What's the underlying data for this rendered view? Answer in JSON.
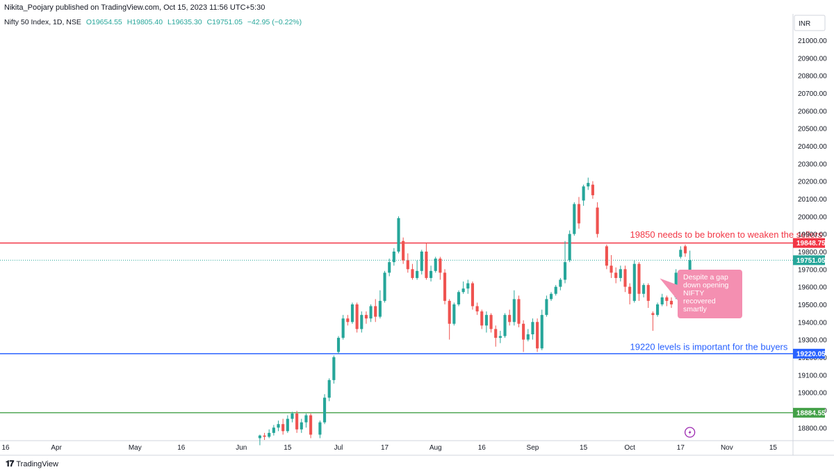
{
  "header": {
    "published": "Nikita_Poojary published on TradingView.com, Oct 15, 2023 11:56 UTC+5:30"
  },
  "legend": {
    "symbol": "Nifty 50 Index, 1D, NSE",
    "open": "O19654.55",
    "high": "H19805.40",
    "low": "L19635.30",
    "close": "C19751.05",
    "change": "−42.95 (−0.22%)"
  },
  "footer": {
    "brand": "TradingView",
    "logo": "tv-logo-icon"
  },
  "colors": {
    "up": "#26a69a",
    "down": "#ef5350",
    "resistance": "#f23645",
    "support_blue": "#2962ff",
    "support_green": "#43a047",
    "callout": "#f48fb1"
  },
  "chart_data": {
    "type": "candlestick",
    "currency": "INR",
    "ylim": [
      18730,
      21150
    ],
    "y_ticks": [
      18800,
      18900,
      19000,
      19100,
      19200,
      19300,
      19400,
      19500,
      19600,
      19700,
      19800,
      19900,
      20000,
      20100,
      20200,
      20300,
      20400,
      20500,
      20600,
      20700,
      20800,
      20900,
      21000
    ],
    "y_tick_labels": [
      "18800.00",
      "18900.00",
      "19000.00",
      "19100.00",
      "19200.00",
      "19300.00",
      "19400.00",
      "19500.00",
      "19600.00",
      "19700.00",
      "19800.00",
      "19900.00",
      "20000.00",
      "20100.00",
      "20200.00",
      "20300.00",
      "20400.00",
      "20500.00",
      "20600.00",
      "20700.00",
      "20800.00",
      "20900.00",
      "21000.00"
    ],
    "x_ticks": [
      "16",
      "Apr",
      "May",
      "16",
      "Jun",
      "15",
      "Jul",
      "17",
      "Aug",
      "16",
      "Sep",
      "15",
      "Oct",
      "17",
      "Nov",
      "15"
    ],
    "x_range": [
      0,
      170
    ],
    "x_tick_positions": [
      0,
      11,
      28,
      38,
      51,
      61,
      72,
      82,
      93,
      103,
      114,
      125,
      135,
      146,
      156,
      166
    ],
    "levels": [
      {
        "value": 19848.75,
        "label": "19848.75",
        "color": "#f23645",
        "style": "solid"
      },
      {
        "value": 19751.05,
        "label": "19751.05",
        "color": "#26a69a",
        "style": "dotted"
      },
      {
        "value": 19220.05,
        "label": "19220.05",
        "color": "#2962ff",
        "style": "solid"
      },
      {
        "value": 18884.55,
        "label": "18884.55",
        "color": "#43a047",
        "style": "solid"
      }
    ],
    "annotations": [
      {
        "text": "19850 needs to be broken to weaken the sellers",
        "color": "#f23645",
        "x": 134,
        "y": 19878
      },
      {
        "text": "19220 levels is important for the buyers",
        "color": "#2962ff",
        "x": 134,
        "y": 19242
      }
    ],
    "callout": {
      "lines": [
        "Despite a gap",
        "down opening",
        "NIFTY",
        "recovered",
        "smartly"
      ],
      "anchor_x": 141.5,
      "anchor_y": 19648
    },
    "candles": [
      [
        55,
        18740,
        18755,
        18700,
        18760
      ],
      [
        56,
        18755,
        18748,
        18730,
        18770
      ],
      [
        57,
        18748,
        18770,
        18740,
        18790
      ],
      [
        58,
        18770,
        18800,
        18755,
        18815
      ],
      [
        59,
        18800,
        18820,
        18780,
        18840
      ],
      [
        60,
        18820,
        18780,
        18760,
        18850
      ],
      [
        61,
        18780,
        18850,
        18770,
        18870
      ],
      [
        62,
        18850,
        18880,
        18830,
        18890
      ],
      [
        63,
        18880,
        18790,
        18770,
        18895
      ],
      [
        64,
        18790,
        18830,
        18770,
        18850
      ],
      [
        65,
        18830,
        18870,
        18800,
        18880
      ],
      [
        66,
        18870,
        18760,
        18740,
        18880
      ],
      [
        68,
        18760,
        18830,
        18740,
        18840
      ],
      [
        69,
        18830,
        18970,
        18820,
        18990
      ],
      [
        70,
        18970,
        19070,
        18950,
        19080
      ],
      [
        71,
        19070,
        19200,
        19050,
        19210
      ],
      [
        72,
        19230,
        19310,
        19220,
        19320
      ],
      [
        73,
        19310,
        19420,
        19300,
        19440
      ],
      [
        74,
        19420,
        19400,
        19380,
        19440
      ],
      [
        75,
        19400,
        19500,
        19390,
        19510
      ],
      [
        76,
        19500,
        19360,
        19340,
        19510
      ],
      [
        77,
        19360,
        19440,
        19340,
        19460
      ],
      [
        78,
        19440,
        19420,
        19390,
        19460
      ],
      [
        79,
        19420,
        19490,
        19400,
        19500
      ],
      [
        80,
        19490,
        19430,
        19400,
        19530
      ],
      [
        81,
        19430,
        19520,
        19420,
        19580
      ],
      [
        82,
        19520,
        19680,
        19510,
        19690
      ],
      [
        83,
        19680,
        19740,
        19660,
        19760
      ],
      [
        84,
        19740,
        19800,
        19720,
        19820
      ],
      [
        85,
        19800,
        19990,
        19790,
        20000
      ],
      [
        86,
        19860,
        19750,
        19730,
        19880
      ],
      [
        87,
        19750,
        19700,
        19680,
        19790
      ],
      [
        88,
        19700,
        19650,
        19640,
        19730
      ],
      [
        89,
        19650,
        19690,
        19640,
        19750
      ],
      [
        90,
        19690,
        19800,
        19670,
        19810
      ],
      [
        91,
        19800,
        19650,
        19640,
        19850
      ],
      [
        92,
        19650,
        19690,
        19630,
        19720
      ],
      [
        93,
        19690,
        19760,
        19680,
        19770
      ],
      [
        94,
        19760,
        19680,
        19640,
        19770
      ],
      [
        95,
        19680,
        19520,
        19500,
        19700
      ],
      [
        96,
        19520,
        19390,
        19300,
        19530
      ],
      [
        97,
        19390,
        19500,
        19380,
        19510
      ],
      [
        98,
        19500,
        19570,
        19490,
        19580
      ],
      [
        99,
        19570,
        19590,
        19560,
        19630
      ],
      [
        100,
        19590,
        19620,
        19560,
        19640
      ],
      [
        101,
        19620,
        19490,
        19470,
        19630
      ],
      [
        102,
        19490,
        19460,
        19440,
        19510
      ],
      [
        103,
        19460,
        19380,
        19360,
        19470
      ],
      [
        104,
        19380,
        19440,
        19340,
        19460
      ],
      [
        105,
        19440,
        19360,
        19340,
        19450
      ],
      [
        106,
        19360,
        19310,
        19260,
        19380
      ],
      [
        107,
        19310,
        19320,
        19280,
        19350
      ],
      [
        108,
        19320,
        19440,
        19310,
        19450
      ],
      [
        109,
        19440,
        19400,
        19380,
        19470
      ],
      [
        110,
        19400,
        19530,
        19380,
        19580
      ],
      [
        111,
        19530,
        19390,
        19370,
        19550
      ],
      [
        112,
        19390,
        19300,
        19230,
        19410
      ],
      [
        113,
        19300,
        19330,
        19290,
        19360
      ],
      [
        114,
        19330,
        19400,
        19300,
        19420
      ],
      [
        115,
        19400,
        19250,
        19230,
        19420
      ],
      [
        116,
        19250,
        19440,
        19240,
        19470
      ],
      [
        117,
        19440,
        19530,
        19430,
        19550
      ],
      [
        118,
        19530,
        19560,
        19520,
        19570
      ],
      [
        119,
        19560,
        19600,
        19550,
        19610
      ],
      [
        120,
        19600,
        19640,
        19580,
        19650
      ],
      [
        121,
        19640,
        19740,
        19620,
        19860
      ],
      [
        122,
        19750,
        19900,
        19740,
        19920
      ],
      [
        123,
        19900,
        20070,
        19890,
        20080
      ],
      [
        124,
        20070,
        19960,
        19930,
        20110
      ],
      [
        125,
        20090,
        20170,
        20060,
        20180
      ],
      [
        126,
        20170,
        20190,
        20150,
        20220
      ],
      [
        127,
        20180,
        20120,
        20100,
        20200
      ],
      [
        128,
        20050,
        19900,
        19880,
        20080
      ],
      [
        130,
        19830,
        19720,
        19700,
        19840
      ],
      [
        131,
        19720,
        19680,
        19650,
        19780
      ],
      [
        132,
        19680,
        19650,
        19620,
        19710
      ],
      [
        133,
        19650,
        19700,
        19630,
        19720
      ],
      [
        134,
        19700,
        19600,
        19570,
        19720
      ],
      [
        135,
        19600,
        19560,
        19500,
        19620
      ],
      [
        136,
        19520,
        19730,
        19510,
        19750
      ],
      [
        137,
        19730,
        19560,
        19520,
        19740
      ],
      [
        138,
        19560,
        19610,
        19540,
        19620
      ],
      [
        139,
        19610,
        19520,
        19480,
        19620
      ],
      [
        140,
        19450,
        19440,
        19350,
        19460
      ],
      [
        141,
        19440,
        19500,
        19430,
        19510
      ],
      [
        142,
        19500,
        19540,
        19490,
        19560
      ],
      [
        143,
        19540,
        19520,
        19490,
        19550
      ],
      [
        144,
        19520,
        19500,
        19480,
        19540
      ],
      [
        145,
        19540,
        19680,
        19530,
        19700
      ],
      [
        146,
        19770,
        19810,
        19760,
        19830
      ],
      [
        147,
        19830,
        19790,
        19770,
        19840
      ],
      [
        148,
        19654.55,
        19751.05,
        19635.3,
        19805.4
      ]
    ]
  }
}
